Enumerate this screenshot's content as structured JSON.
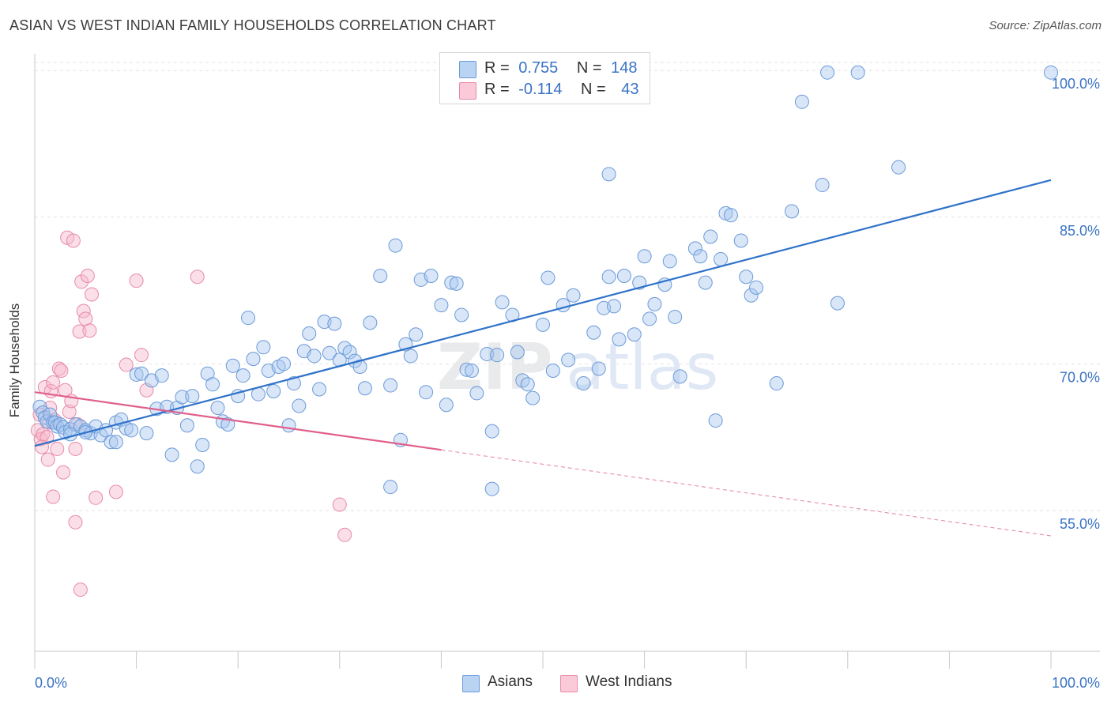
{
  "title": "ASIAN VS WEST INDIAN FAMILY HOUSEHOLDS CORRELATION CHART",
  "source": "Source: ZipAtlas.com",
  "legend": {
    "asian": {
      "r_label": "R =",
      "r_value": "0.755",
      "n_label": "N =",
      "n_value": "148"
    },
    "west_indian": {
      "r_label": "R =",
      "r_value": "-0.114",
      "n_label": "N =",
      "n_value": "43"
    }
  },
  "bottom_legend": {
    "asians": "Asians",
    "west_indians": "West Indians"
  },
  "colors": {
    "asian_fill": "#a9c8f0",
    "asian_stroke": "#6b9ad8",
    "asian_line": "#2f72c9",
    "west_fill": "#f7b8cc",
    "west_stroke": "#e88aa8",
    "west_line": "#e0608c",
    "axis_label": "#3a73c4",
    "grid": "#e3e3e3"
  },
  "chart_data": {
    "type": "scatter",
    "title": "ASIAN VS WEST INDIAN FAMILY HOUSEHOLDS CORRELATION CHART",
    "xlabel": "",
    "ylabel": "Family Households",
    "xlim": [
      0,
      100
    ],
    "ylim": [
      40.6,
      102.2
    ],
    "x_tick_labels": [
      "0.0%",
      "100.0%"
    ],
    "y_ticks": [
      55,
      70,
      85,
      100
    ],
    "y_tick_labels": [
      "55.0%",
      "70.0%",
      "85.0%",
      "100.0%"
    ],
    "grid": true,
    "watermark": "ZIPatlas",
    "series": [
      {
        "name": "Asians",
        "R": 0.755,
        "N": 148,
        "trend": {
          "x": [
            0,
            100
          ],
          "y": [
            61.6,
            88.8
          ]
        },
        "points": [
          [
            0.5,
            65.6
          ],
          [
            0.8,
            65.0
          ],
          [
            1.0,
            64.5
          ],
          [
            1.2,
            64.1
          ],
          [
            1.5,
            64.8
          ],
          [
            1.8,
            64.0
          ],
          [
            2.0,
            64.0
          ],
          [
            2.2,
            63.6
          ],
          [
            2.5,
            63.8
          ],
          [
            2.8,
            63.5
          ],
          [
            3.0,
            63.0
          ],
          [
            3.5,
            63.3
          ],
          [
            4.0,
            63.8
          ],
          [
            4.5,
            63.6
          ],
          [
            5.0,
            63.2
          ],
          [
            5.5,
            62.9
          ],
          [
            6.0,
            63.6
          ],
          [
            6.5,
            62.7
          ],
          [
            7.0,
            63.2
          ],
          [
            7.5,
            62.0
          ],
          [
            8.0,
            64.0
          ],
          [
            8.5,
            64.3
          ],
          [
            9.0,
            63.4
          ],
          [
            9.5,
            63.2
          ],
          [
            10.0,
            68.9
          ],
          [
            10.5,
            69.0
          ],
          [
            11.0,
            62.9
          ],
          [
            11.5,
            68.3
          ],
          [
            12.0,
            65.4
          ],
          [
            12.5,
            68.8
          ],
          [
            13.0,
            65.6
          ],
          [
            13.5,
            60.7
          ],
          [
            14.0,
            65.5
          ],
          [
            14.5,
            66.6
          ],
          [
            15.0,
            63.7
          ],
          [
            15.5,
            66.7
          ],
          [
            16.0,
            59.5
          ],
          [
            16.5,
            61.7
          ],
          [
            17.0,
            69.0
          ],
          [
            17.5,
            67.9
          ],
          [
            18.0,
            65.5
          ],
          [
            18.5,
            64.1
          ],
          [
            19.0,
            63.8
          ],
          [
            19.5,
            69.8
          ],
          [
            20.0,
            66.7
          ],
          [
            20.5,
            68.8
          ],
          [
            21.0,
            74.7
          ],
          [
            21.5,
            70.5
          ],
          [
            22.0,
            66.9
          ],
          [
            22.5,
            71.7
          ],
          [
            23.0,
            69.3
          ],
          [
            23.5,
            67.2
          ],
          [
            24.0,
            69.7
          ],
          [
            24.5,
            70.0
          ],
          [
            25.0,
            63.7
          ],
          [
            25.5,
            68.0
          ],
          [
            26.0,
            65.7
          ],
          [
            26.5,
            71.3
          ],
          [
            27.0,
            73.1
          ],
          [
            27.5,
            70.8
          ],
          [
            28.0,
            67.4
          ],
          [
            28.5,
            74.3
          ],
          [
            29.0,
            71.1
          ],
          [
            29.5,
            74.1
          ],
          [
            30.0,
            70.4
          ],
          [
            30.5,
            71.6
          ],
          [
            31.0,
            71.2
          ],
          [
            31.5,
            70.3
          ],
          [
            32.0,
            69.7
          ],
          [
            32.5,
            67.5
          ],
          [
            33.0,
            74.2
          ],
          [
            34.0,
            79.0
          ],
          [
            35.0,
            67.8
          ],
          [
            35.5,
            82.1
          ],
          [
            36.0,
            62.2
          ],
          [
            36.5,
            72.0
          ],
          [
            37.0,
            70.8
          ],
          [
            37.5,
            73.0
          ],
          [
            38.0,
            78.6
          ],
          [
            38.5,
            67.1
          ],
          [
            39.0,
            79.0
          ],
          [
            40.0,
            76.0
          ],
          [
            40.5,
            65.8
          ],
          [
            41.0,
            78.3
          ],
          [
            41.5,
            78.2
          ],
          [
            42.0,
            75.0
          ],
          [
            42.5,
            69.4
          ],
          [
            43.0,
            69.3
          ],
          [
            43.5,
            67.0
          ],
          [
            44.5,
            71.0
          ],
          [
            45.0,
            63.1
          ],
          [
            45.5,
            70.9
          ],
          [
            46.0,
            76.3
          ],
          [
            47.0,
            75.0
          ],
          [
            47.5,
            71.2
          ],
          [
            48.0,
            68.3
          ],
          [
            48.5,
            67.9
          ],
          [
            49.0,
            66.5
          ],
          [
            50.0,
            74.0
          ],
          [
            50.5,
            78.8
          ],
          [
            51.0,
            69.3
          ],
          [
            52.0,
            76.0
          ],
          [
            52.5,
            70.4
          ],
          [
            53.0,
            77.0
          ],
          [
            54.0,
            68.0
          ],
          [
            55.0,
            73.2
          ],
          [
            55.5,
            69.5
          ],
          [
            56.0,
            75.7
          ],
          [
            56.5,
            78.9
          ],
          [
            57.0,
            75.9
          ],
          [
            57.5,
            72.5
          ],
          [
            58.0,
            79.0
          ],
          [
            59.0,
            73.0
          ],
          [
            59.5,
            78.3
          ],
          [
            60.0,
            81.0
          ],
          [
            60.5,
            74.6
          ],
          [
            61.0,
            76.1
          ],
          [
            62.0,
            78.1
          ],
          [
            62.5,
            80.5
          ],
          [
            63.0,
            74.8
          ],
          [
            63.5,
            68.7
          ],
          [
            65.0,
            81.8
          ],
          [
            65.5,
            81.0
          ],
          [
            66.0,
            78.3
          ],
          [
            66.5,
            83.0
          ],
          [
            67.0,
            64.2
          ],
          [
            67.5,
            80.7
          ],
          [
            68.0,
            85.4
          ],
          [
            68.5,
            85.2
          ],
          [
            69.5,
            82.6
          ],
          [
            70.0,
            78.9
          ],
          [
            70.5,
            77.0
          ],
          [
            71.0,
            77.8
          ],
          [
            73.0,
            68.0
          ],
          [
            74.5,
            85.6
          ],
          [
            75.5,
            96.8
          ],
          [
            77.5,
            88.3
          ],
          [
            78.0,
            99.8
          ],
          [
            79.0,
            76.2
          ],
          [
            81.0,
            99.8
          ],
          [
            85.0,
            90.1
          ],
          [
            100.0,
            99.8
          ],
          [
            56.5,
            89.4
          ],
          [
            45.0,
            57.2
          ],
          [
            35.0,
            57.4
          ],
          [
            8.0,
            62.0
          ],
          [
            5.0,
            63.0
          ],
          [
            3.5,
            62.8
          ]
        ]
      },
      {
        "name": "West Indians",
        "R": -0.114,
        "N": 43,
        "trend": {
          "x": [
            0,
            40
          ],
          "y": [
            67.1,
            61.2
          ]
        },
        "trend_dashed": {
          "x": [
            40,
            100
          ],
          "y": [
            61.2,
            52.4
          ]
        },
        "points": [
          [
            0.3,
            63.2
          ],
          [
            0.5,
            64.8
          ],
          [
            0.6,
            62.3
          ],
          [
            0.8,
            62.8
          ],
          [
            1.0,
            67.6
          ],
          [
            1.2,
            62.5
          ],
          [
            1.3,
            60.2
          ],
          [
            1.5,
            65.5
          ],
          [
            1.6,
            67.2
          ],
          [
            1.8,
            68.1
          ],
          [
            2.0,
            64.2
          ],
          [
            2.2,
            61.3
          ],
          [
            2.4,
            69.5
          ],
          [
            2.6,
            69.3
          ],
          [
            2.8,
            58.9
          ],
          [
            3.0,
            67.3
          ],
          [
            3.2,
            82.9
          ],
          [
            3.4,
            65.1
          ],
          [
            3.6,
            66.2
          ],
          [
            3.8,
            82.6
          ],
          [
            4.0,
            61.3
          ],
          [
            4.2,
            63.8
          ],
          [
            4.4,
            73.3
          ],
          [
            4.6,
            78.4
          ],
          [
            4.8,
            75.4
          ],
          [
            5.0,
            74.6
          ],
          [
            5.2,
            79.0
          ],
          [
            5.4,
            73.4
          ],
          [
            5.6,
            77.1
          ],
          [
            6.0,
            56.3
          ],
          [
            8.0,
            56.9
          ],
          [
            9.0,
            69.9
          ],
          [
            10.0,
            78.5
          ],
          [
            10.5,
            70.9
          ],
          [
            11.0,
            67.3
          ],
          [
            16.0,
            78.9
          ],
          [
            30.0,
            55.6
          ],
          [
            30.5,
            52.5
          ],
          [
            4.5,
            46.9
          ],
          [
            4.0,
            53.8
          ],
          [
            1.8,
            56.4
          ],
          [
            0.7,
            61.5
          ],
          [
            1.4,
            64.0
          ]
        ]
      }
    ]
  }
}
